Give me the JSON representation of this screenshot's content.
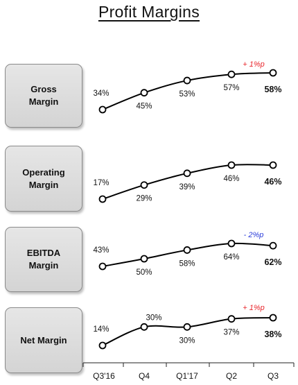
{
  "title": "Profit Margins",
  "colors": {
    "line": "#000000",
    "positive_delta": "#e8262c",
    "negative_delta": "#2a3bd9"
  },
  "chart_data": {
    "type": "line",
    "categories": [
      "Q3'16",
      "Q4",
      "Q1'17",
      "Q2",
      "Q3"
    ],
    "series": [
      {
        "name": "Gross\nMargin",
        "values": [
          34,
          45,
          53,
          57,
          58
        ],
        "labels": [
          "34%",
          "45%",
          "53%",
          "57%",
          "58%"
        ],
        "delta": "+ 1%p"
      },
      {
        "name": "Operating\nMargin",
        "values": [
          17,
          29,
          39,
          46,
          46
        ],
        "labels": [
          "17%",
          "29%",
          "39%",
          "46%",
          "46%"
        ],
        "delta": ""
      },
      {
        "name": "EBITDA\nMargin",
        "values": [
          43,
          50,
          58,
          64,
          62
        ],
        "labels": [
          "43%",
          "50%",
          "58%",
          "64%",
          "62%"
        ],
        "delta": "- 2%p"
      },
      {
        "name": "Net Margin",
        "values": [
          14,
          30,
          30,
          37,
          38
        ],
        "labels": [
          "14%",
          "30%",
          "30%",
          "37%",
          "38%"
        ],
        "delta": "+ 1%p"
      }
    ]
  }
}
